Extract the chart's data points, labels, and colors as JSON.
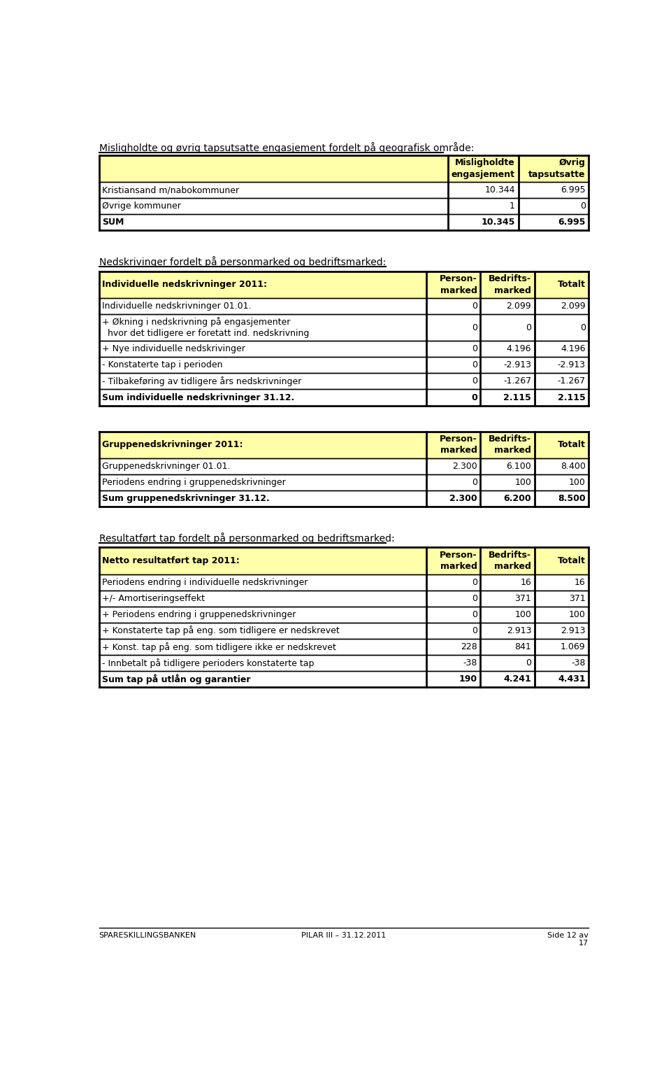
{
  "title1": "Misligholdte og øvrig tapsutsatte engasjement fordelt på geografisk område:",
  "table1_header": [
    "",
    "Misligholdte\nengasjement",
    "Øvrig\ntapsutsatte"
  ],
  "table1_rows": [
    [
      "Kristiansand m/nabokommuner",
      "10.344",
      "6.995"
    ],
    [
      "Øvrige kommuner",
      "1",
      "0"
    ],
    [
      "SUM",
      "10.345",
      "6.995"
    ]
  ],
  "table1_bold_rows": [
    2
  ],
  "title2": "Nedskrivinger fordelt på personmarked og bedriftsmarked:",
  "table2_header": [
    "Individuelle nedskrivninger 2011:",
    "Person-\nmarked",
    "Bedrifts-\nmarked",
    "Totalt"
  ],
  "table2_rows": [
    [
      "Individuelle nedskrivninger 01.01.",
      "0",
      "2.099",
      "2.099"
    ],
    [
      "+ Økning i nedskrivning på engasjementer\n  hvor det tidligere er foretatt ind. nedskrivning",
      "0",
      "0",
      "0"
    ],
    [
      "+ Nye individuelle nedskrivinger",
      "0",
      "4.196",
      "4.196"
    ],
    [
      "- Konstaterte tap i perioden",
      "0",
      "-2.913",
      "-2.913"
    ],
    [
      "- Tilbakeføring av tidligere års nedskrivninger",
      "0",
      "-1.267",
      "-1.267"
    ],
    [
      "Sum individuelle nedskrivninger 31.12.",
      "0",
      "2.115",
      "2.115"
    ]
  ],
  "table2_bold_rows": [
    5
  ],
  "table3_header": [
    "Gruppenedskrivninger 2011:",
    "Person-\nmarked",
    "Bedrifts-\nmarked",
    "Totalt"
  ],
  "table3_rows": [
    [
      "Gruppenedskrivninger 01.01.",
      "2.300",
      "6.100",
      "8.400"
    ],
    [
      "Periodens endring i gruppenedskrivninger",
      "0",
      "100",
      "100"
    ],
    [
      "Sum gruppenedskrivninger 31.12.",
      "2.300",
      "6.200",
      "8.500"
    ]
  ],
  "table3_bold_rows": [
    2
  ],
  "title3": "Resultatført tap fordelt på personmarked og bedriftsmarked:",
  "table4_header": [
    "Netto resultatført tap 2011:",
    "Person-\nmarked",
    "Bedrifts-\nmarked",
    "Totalt"
  ],
  "table4_rows": [
    [
      "Periodens endring i individuelle nedskrivninger",
      "0",
      "16",
      "16"
    ],
    [
      "+/- Amortiseringseffekt",
      "0",
      "371",
      "371"
    ],
    [
      "+ Periodens endring i gruppenedskrivninger",
      "0",
      "100",
      "100"
    ],
    [
      "+ Konstaterte tap på eng. som tidligere er nedskrevet",
      "0",
      "2.913",
      "2.913"
    ],
    [
      "+ Konst. tap på eng. som tidligere ikke er nedskrevet",
      "228",
      "841",
      "1.069"
    ],
    [
      "- Innbetalt på tidligere perioders konstaterte tap",
      "-38",
      "0",
      "-38"
    ],
    [
      "Sum tap på utlån og garantier",
      "190",
      "4.241",
      "4.431"
    ]
  ],
  "table4_bold_rows": [
    6
  ],
  "footer_left": "SPARESKILLINGSBANKEN",
  "footer_center": "PILAR III – 31.12.2011",
  "footer_right": "Side 12 av",
  "footer_right2": "17",
  "header_bg": "#FFFFAA",
  "white_bg": "#FFFFFF",
  "border_color": "#000000",
  "text_color": "#000000",
  "font_size": 9,
  "title_font_size": 10
}
